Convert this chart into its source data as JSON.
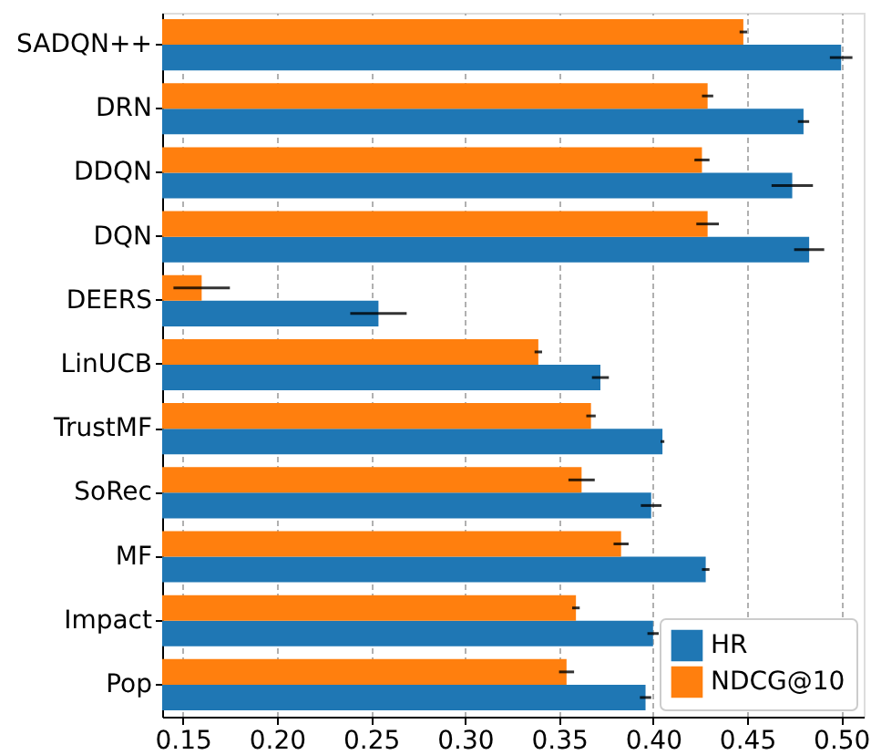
{
  "chart_data": {
    "type": "bar",
    "orientation": "horizontal",
    "categories": [
      "SADQN++",
      "DRN",
      "DDQN",
      "DQN",
      "DEERS",
      "LinUCB",
      "TrustMF",
      "SoRec",
      "MF",
      "Impact",
      "Pop"
    ],
    "series": [
      {
        "name": "HR",
        "color": "#1f77b4",
        "values": [
          0.5,
          0.48,
          0.474,
          0.483,
          0.254,
          0.372,
          0.405,
          0.399,
          0.428,
          0.4,
          0.396
        ],
        "errors": [
          0.006,
          0.003,
          0.011,
          0.008,
          0.015,
          0.0045,
          0.001,
          0.0055,
          0.002,
          0.003,
          0.003
        ]
      },
      {
        "name": "NDCG@10",
        "color": "#ff7f0e",
        "values": [
          0.448,
          0.429,
          0.426,
          0.429,
          0.16,
          0.339,
          0.367,
          0.362,
          0.383,
          0.359,
          0.354
        ],
        "errors": [
          0.002,
          0.003,
          0.004,
          0.006,
          0.015,
          0.002,
          0.0025,
          0.007,
          0.004,
          0.002,
          0.004
        ]
      }
    ],
    "xlim": [
      0.139,
      0.512
    ],
    "xticks": [
      0.15,
      {
        "value": 0.2,
        "label": "0.20"
      },
      0.25,
      {
        "value": 0.3,
        "label": "0.30"
      },
      0.35,
      {
        "value": 0.4,
        "label": "0.40"
      },
      0.45,
      {
        "value": 0.5,
        "label": "0.50"
      }
    ],
    "grid": "x",
    "legend": "bottom right"
  }
}
